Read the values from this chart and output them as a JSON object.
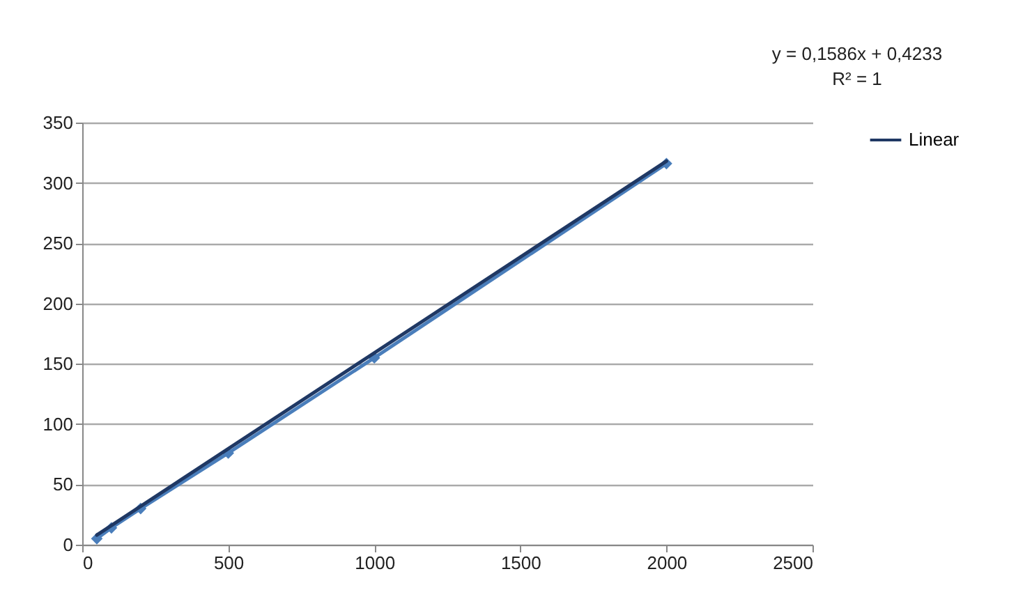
{
  "chart_data": {
    "type": "line",
    "x": [
      50,
      100,
      200,
      500,
      1000,
      2000
    ],
    "series": [
      {
        "color": "#4a7ebb",
        "values": [
          5,
          14,
          30,
          76,
          155,
          316
        ]
      },
      {
        "name": "Linear",
        "color": "#1f3864",
        "marker": "none",
        "x": [
          50,
          2000
        ],
        "values": [
          8,
          318
        ]
      }
    ],
    "xlim": [
      0,
      2500
    ],
    "xticks": [
      0,
      500,
      1000,
      1500,
      2000,
      2500
    ],
    "ylim": [
      0,
      350
    ],
    "yticks": [
      0,
      50,
      100,
      150,
      200,
      250,
      300,
      350
    ],
    "grid": "y",
    "legend": "right",
    "marker": "diamond",
    "line_style": "solid",
    "annotations": [
      "y = 0,1586x + 0,4233",
      "R² = 1"
    ]
  }
}
